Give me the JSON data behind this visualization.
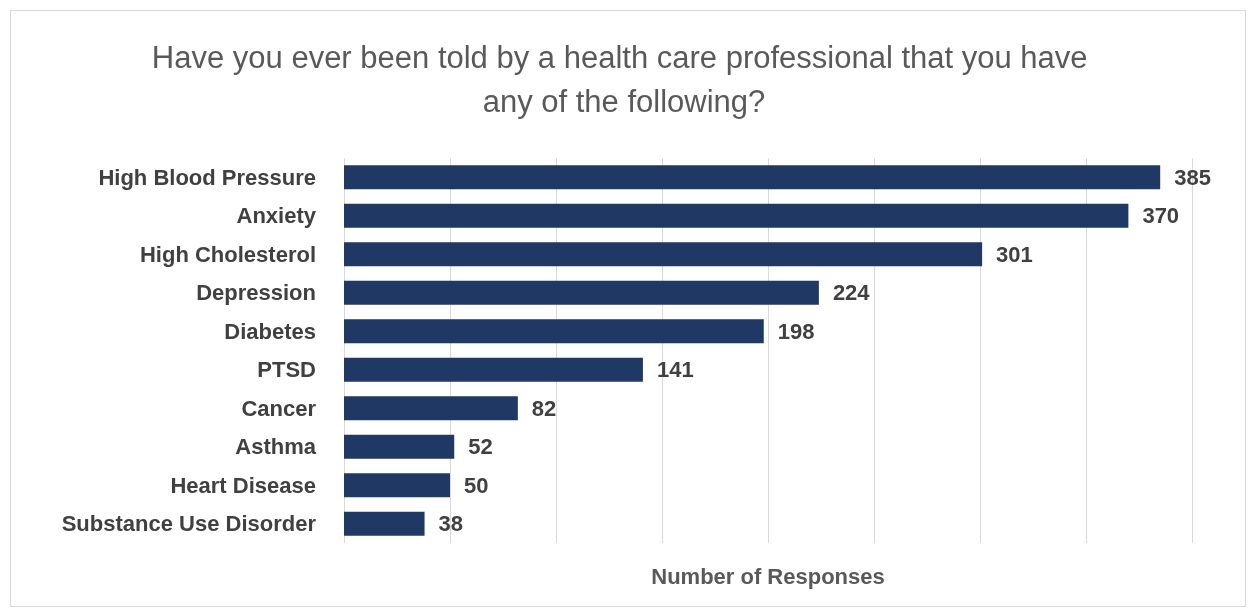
{
  "chart_data": {
    "type": "bar",
    "orientation": "horizontal",
    "title": "Have you ever been told by a health care professional that you have any of the following?",
    "xlabel": "Number of Responses",
    "categories": [
      "High Blood Pressure",
      "Anxiety",
      "High Cholesterol",
      "Depression",
      "Diabetes",
      "PTSD",
      "Cancer",
      "Asthma",
      "Heart Disease",
      "Substance Use Disorder"
    ],
    "values": [
      385,
      370,
      301,
      224,
      198,
      141,
      82,
      52,
      50,
      38
    ],
    "color": "#203864",
    "xlim": [
      0,
      400
    ],
    "xticks": [
      {
        "value": 0,
        "label": null
      },
      {
        "value": 50,
        "label": null
      },
      {
        "value": 100,
        "label": null
      },
      {
        "value": 150,
        "label": null
      },
      {
        "value": 200,
        "label": null
      },
      {
        "value": 250,
        "label": null
      },
      {
        "value": 300,
        "label": null
      },
      {
        "value": 350,
        "label": null
      },
      {
        "value": 400,
        "label": null
      }
    ],
    "tick_labels": "y",
    "grid": "x",
    "data_labels": true
  }
}
